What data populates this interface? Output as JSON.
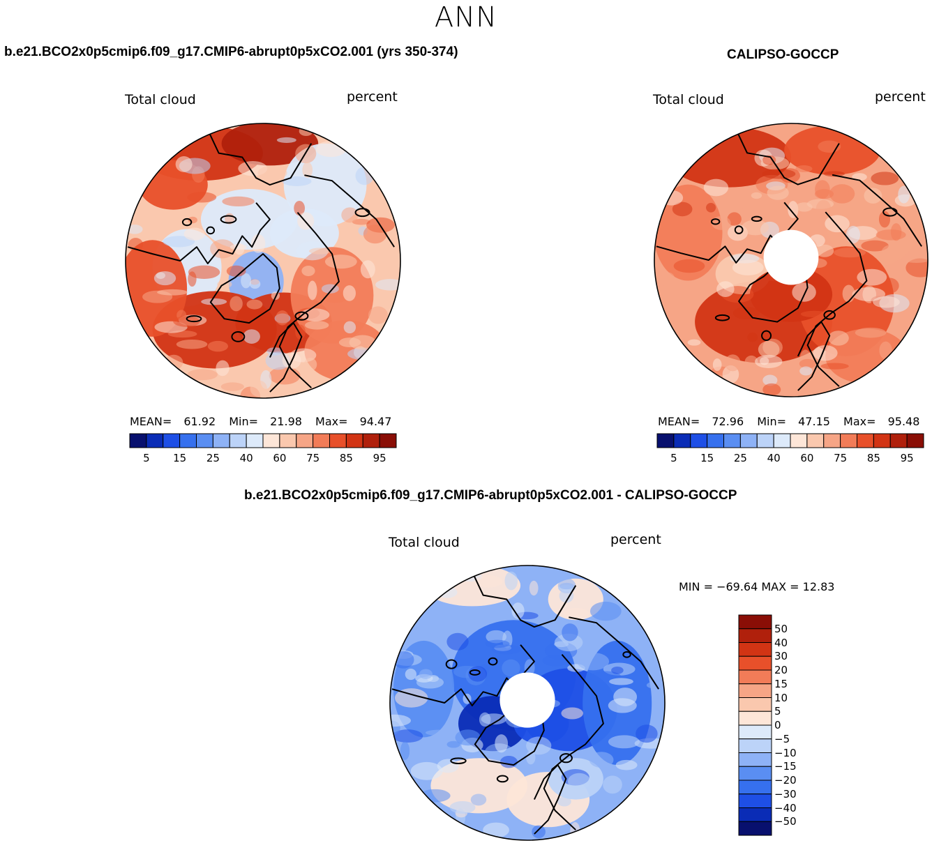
{
  "main_title": "ANN",
  "colors": {
    "abs_scale": [
      "#08106e",
      "#0a2cb6",
      "#1e4fe6",
      "#3670ee",
      "#5a8ef2",
      "#8eb2f6",
      "#bcd3f8",
      "#ddeafa",
      "#fde6d8",
      "#fac8ae",
      "#f6a586",
      "#f27c58",
      "#e8502a",
      "#d23414",
      "#b0200c",
      "#8a0e06"
    ],
    "diff_scale": [
      "#08106e",
      "#0a2cb6",
      "#1e4fe6",
      "#3670ee",
      "#5a8ef2",
      "#8eb2f6",
      "#bcd3f8",
      "#ddeafa",
      "#fde6d8",
      "#fac8ae",
      "#f6a586",
      "#f27c58",
      "#e8502a",
      "#d23414",
      "#b0200c",
      "#8a0e06"
    ],
    "land_outline": "#000000"
  },
  "chart_data": [
    {
      "type": "heatmap",
      "projection": "north-polar-stereographic",
      "title": "b.e21.BCO2x0p5cmip6.f09_g17.CMIP6-abrupt0p5xCO2.001 (yrs 350-374)",
      "variable": "Total cloud",
      "units": "percent",
      "stats": {
        "mean_label": "MEAN=",
        "mean": "61.92",
        "min_label": "Min=",
        "min": "21.98",
        "max_label": "Max=",
        "max": "94.47"
      },
      "colorbar_ticks": [
        "5",
        "15",
        "25",
        "40",
        "60",
        "75",
        "85",
        "95"
      ]
    },
    {
      "type": "heatmap",
      "projection": "north-polar-stereographic",
      "title": "CALIPSO-GOCCP",
      "variable": "Total cloud",
      "units": "percent",
      "stats": {
        "mean_label": "MEAN=",
        "mean": "72.96",
        "min_label": "Min=",
        "min": "47.15",
        "max_label": "Max=",
        "max": "95.48"
      },
      "colorbar_ticks": [
        "5",
        "15",
        "25",
        "40",
        "60",
        "75",
        "85",
        "95"
      ]
    },
    {
      "type": "heatmap",
      "projection": "north-polar-stereographic",
      "title": "b.e21.BCO2x0p5cmip6.f09_g17.CMIP6-abrupt0p5xCO2.001 - CALIPSO-GOCCP",
      "variable": "Total cloud",
      "units": "percent",
      "minmax_text": "MIN = −69.64 MAX =   12.83",
      "colorbar_levels": [
        "50",
        "40",
        "30",
        "20",
        "15",
        "10",
        "5",
        "0",
        "−5",
        "−10",
        "−15",
        "−20",
        "−30",
        "−40",
        "−50"
      ]
    }
  ]
}
